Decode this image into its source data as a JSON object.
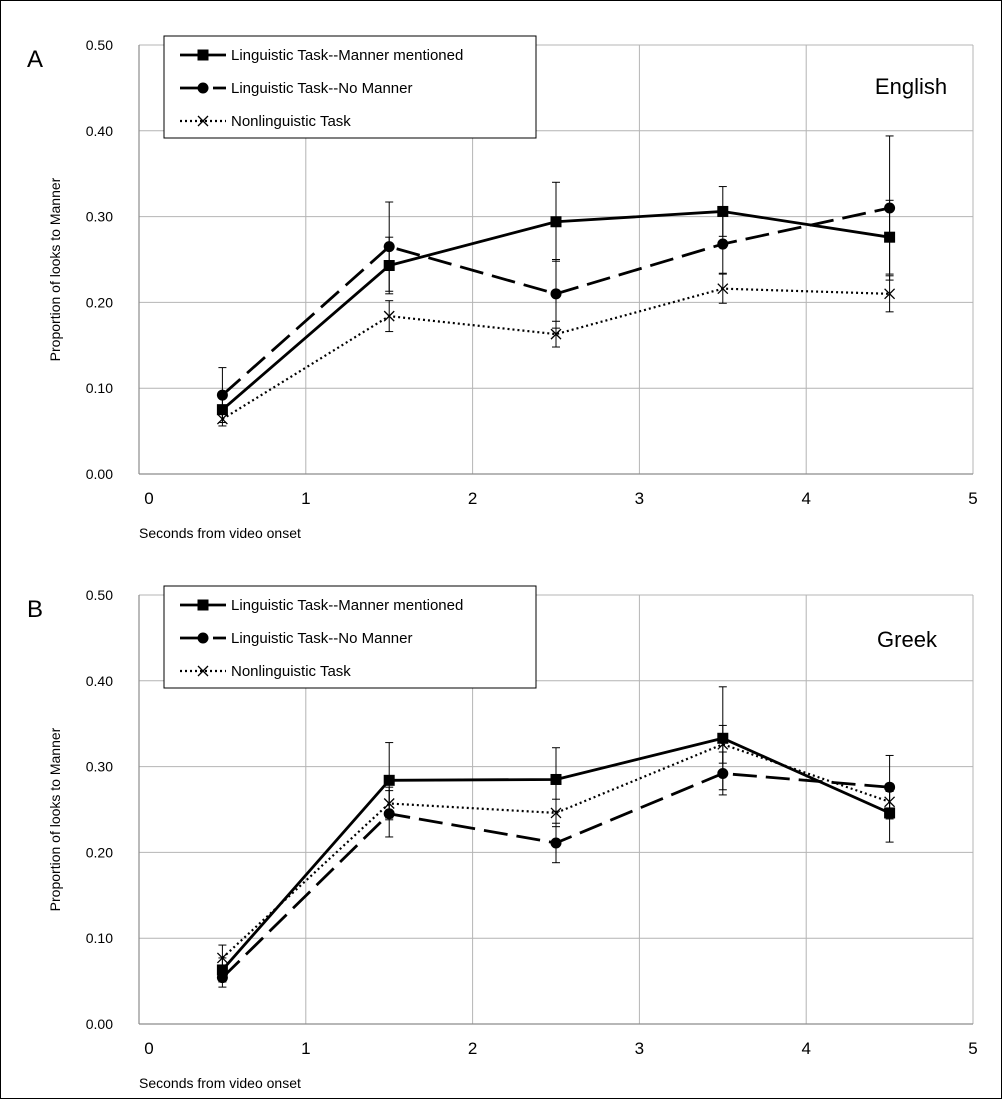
{
  "chart_data": [
    {
      "type": "line",
      "panel_label": "A",
      "annotation": "English",
      "xlabel": "Seconds from video onset",
      "ylabel": "Proportion  of looks to Manner",
      "xlim": [
        0,
        5
      ],
      "ylim": [
        0.0,
        0.5
      ],
      "x_ticks": [
        "0",
        "1",
        "2",
        "3",
        "4",
        "5"
      ],
      "y_ticks": [
        "0.00",
        "0.10",
        "0.20",
        "0.30",
        "0.40",
        "0.50"
      ],
      "grid": true,
      "legend_position": "top-left",
      "x": [
        0.5,
        1.5,
        2.5,
        3.5,
        4.5
      ],
      "series": [
        {
          "name": "Linguistic Task--Manner mentioned",
          "style": "solid",
          "marker": "square",
          "values": [
            0.075,
            0.243,
            0.294,
            0.306,
            0.276
          ],
          "error": [
            0.015,
            0.033,
            0.046,
            0.029,
            0.043
          ]
        },
        {
          "name": "Linguistic Task--No Manner",
          "style": "dashed",
          "marker": "circle",
          "values": [
            0.092,
            0.265,
            0.21,
            0.268,
            0.31
          ],
          "error": [
            0.032,
            0.052,
            0.04,
            0.034,
            0.084
          ]
        },
        {
          "name": "Nonlinguistic Task",
          "style": "dotted",
          "marker": "x",
          "values": [
            0.064,
            0.184,
            0.163,
            0.216,
            0.21
          ],
          "error": [
            0.008,
            0.018,
            0.015,
            0.017,
            0.021
          ]
        }
      ]
    },
    {
      "type": "line",
      "panel_label": "B",
      "annotation": "Greek",
      "xlabel": "Seconds from video onset",
      "ylabel": "Proportion  of looks to Manner",
      "xlim": [
        0,
        5
      ],
      "ylim": [
        0.0,
        0.5
      ],
      "x_ticks": [
        "0",
        "1",
        "2",
        "3",
        "4",
        "5"
      ],
      "y_ticks": [
        "0.00",
        "0.10",
        "0.20",
        "0.30",
        "0.40",
        "0.50"
      ],
      "grid": true,
      "legend_position": "top-left",
      "x": [
        0.5,
        1.5,
        2.5,
        3.5,
        4.5
      ],
      "series": [
        {
          "name": "Linguistic Task--Manner mentioned",
          "style": "solid",
          "marker": "square",
          "values": [
            0.063,
            0.284,
            0.285,
            0.333,
            0.246
          ],
          "error": [
            0.014,
            0.044,
            0.037,
            0.06,
            0.034
          ]
        },
        {
          "name": "Linguistic Task--No Manner",
          "style": "dashed",
          "marker": "circle",
          "values": [
            0.054,
            0.245,
            0.211,
            0.292,
            0.276
          ],
          "error": [
            0.011,
            0.027,
            0.023,
            0.025,
            0.037
          ]
        },
        {
          "name": "Nonlinguistic Task",
          "style": "dotted",
          "marker": "x",
          "values": [
            0.077,
            0.257,
            0.246,
            0.326,
            0.259
          ],
          "error": [
            0.015,
            0.019,
            0.016,
            0.022,
            0.012
          ]
        }
      ]
    }
  ]
}
